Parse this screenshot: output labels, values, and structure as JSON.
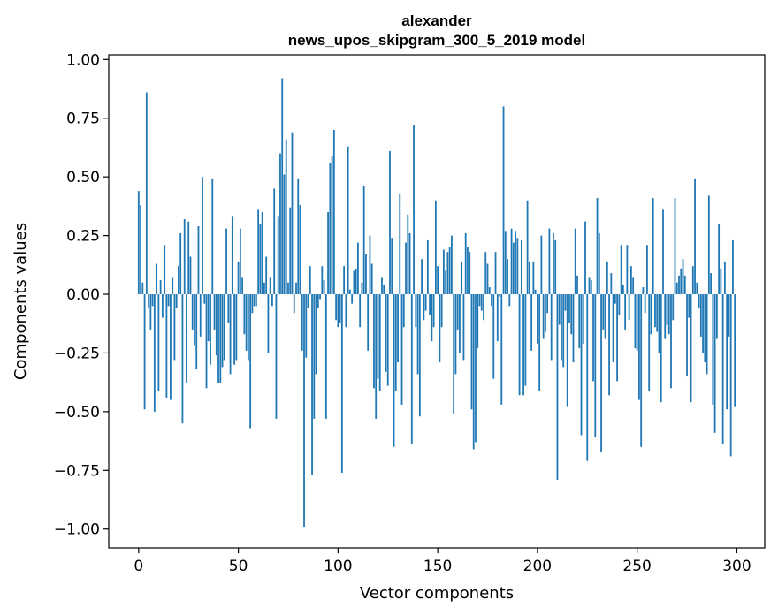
{
  "chart_data": {
    "type": "bar",
    "title": "alexander",
    "subtitle": "news_upos_skipgram_300_5_2019 model",
    "xlabel": "Vector components",
    "ylabel": "Components values",
    "xlim": [
      -15,
      314
    ],
    "ylim": [
      -1.08,
      1.02
    ],
    "xticks": [
      0,
      50,
      100,
      150,
      200,
      250,
      300
    ],
    "yticks": [
      1.0,
      0.75,
      0.5,
      0.25,
      0.0,
      -0.25,
      -0.5,
      -0.75,
      -1.0
    ],
    "ytick_labels": [
      "1.00",
      "0.75",
      "0.50",
      "0.25",
      "0.00",
      "−0.25",
      "−0.50",
      "−0.75",
      "−1.00"
    ],
    "grid": false,
    "bar_color": "#1f77b4",
    "x_start": 0,
    "values": [
      0.44,
      0.38,
      0.05,
      -0.49,
      0.86,
      -0.06,
      -0.15,
      -0.05,
      -0.5,
      0.13,
      -0.41,
      0.06,
      -0.1,
      0.21,
      -0.44,
      -0.05,
      -0.45,
      0.07,
      -0.28,
      -0.06,
      0.12,
      0.26,
      -0.55,
      0.32,
      -0.38,
      0.31,
      0.16,
      -0.15,
      -0.22,
      -0.32,
      0.29,
      -0.18,
      0.5,
      -0.04,
      -0.4,
      -0.2,
      -0.3,
      0.49,
      -0.15,
      -0.26,
      -0.38,
      -0.38,
      -0.31,
      -0.28,
      0.28,
      -0.12,
      -0.34,
      0.33,
      -0.3,
      -0.28,
      0.14,
      0.28,
      0.07,
      -0.17,
      -0.24,
      -0.28,
      -0.57,
      -0.08,
      -0.05,
      -0.05,
      0.36,
      0.3,
      0.35,
      0.05,
      0.16,
      -0.25,
      0.07,
      -0.05,
      0.45,
      -0.53,
      0.33,
      0.6,
      0.92,
      0.51,
      0.66,
      0.05,
      0.37,
      0.69,
      -0.08,
      0.05,
      0.49,
      0.38,
      -0.24,
      -0.99,
      -0.27,
      -0.06,
      0.12,
      -0.77,
      -0.53,
      -0.34,
      -0.06,
      -0.02,
      0.12,
      0.06,
      -0.53,
      0.35,
      0.56,
      0.59,
      0.7,
      -0.11,
      -0.14,
      -0.12,
      -0.76,
      0.12,
      -0.14,
      0.63,
      0.02,
      -0.04,
      0.1,
      0.11,
      0.22,
      -0.14,
      0.05,
      0.46,
      0.17,
      -0.24,
      0.25,
      0.13,
      -0.4,
      -0.53,
      -0.36,
      -0.41,
      0.07,
      0.04,
      -0.33,
      -0.39,
      0.61,
      0.24,
      -0.65,
      -0.41,
      -0.29,
      0.43,
      -0.47,
      -0.14,
      0.22,
      0.34,
      0.26,
      -0.64,
      0.72,
      -0.14,
      -0.34,
      -0.52,
      0.15,
      -0.11,
      -0.07,
      0.23,
      -0.09,
      -0.2,
      -0.14,
      0.4,
      0.12,
      -0.29,
      -0.14,
      0.19,
      0.1,
      0.18,
      0.2,
      0.25,
      -0.51,
      -0.34,
      -0.15,
      -0.25,
      0.14,
      -0.28,
      0.26,
      0.2,
      0.18,
      -0.49,
      -0.66,
      -0.63,
      -0.23,
      -0.05,
      -0.07,
      -0.11,
      0.18,
      0.13,
      0.03,
      -0.05,
      -0.36,
      0.18,
      -0.2,
      -0.01,
      -0.47,
      0.8,
      0.27,
      0.15,
      -0.05,
      0.28,
      0.22,
      0.27,
      0.24,
      -0.43,
      0.23,
      -0.43,
      -0.39,
      0.4,
      0.14,
      -0.24,
      0.14,
      0.02,
      -0.21,
      -0.41,
      0.25,
      -0.19,
      -0.16,
      -0.08,
      0.28,
      -0.28,
      0.26,
      0.23,
      -0.79,
      -0.13,
      -0.28,
      -0.31,
      -0.07,
      -0.48,
      -0.12,
      -0.17,
      -0.29,
      0.28,
      0.08,
      -0.23,
      -0.6,
      -0.21,
      0.31,
      -0.71,
      0.07,
      0.06,
      -0.37,
      -0.61,
      0.41,
      0.26,
      -0.67,
      -0.15,
      -0.19,
      0.14,
      -0.43,
      0.09,
      -0.29,
      -0.04,
      -0.37,
      -0.09,
      0.21,
      0.04,
      -0.15,
      0.21,
      -0.11,
      0.12,
      0.07,
      -0.23,
      -0.24,
      -0.45,
      -0.65,
      0.03,
      -0.08,
      0.21,
      -0.41,
      -0.17,
      0.41,
      -0.14,
      -0.16,
      -0.25,
      -0.46,
      0.36,
      -0.19,
      -0.13,
      -0.17,
      -0.4,
      -0.11,
      0.41,
      0.05,
      0.08,
      0.11,
      0.15,
      0.08,
      -0.35,
      -0.1,
      -0.46,
      0.12,
      0.49,
      0.05,
      -0.06,
      -0.18,
      -0.25,
      -0.29,
      -0.34,
      0.42,
      0.09,
      -0.47,
      -0.59,
      -0.19,
      0.3,
      0.11,
      -0.64,
      0.14,
      -0.49,
      -0.18,
      -0.69,
      0.23,
      -0.48
    ]
  }
}
